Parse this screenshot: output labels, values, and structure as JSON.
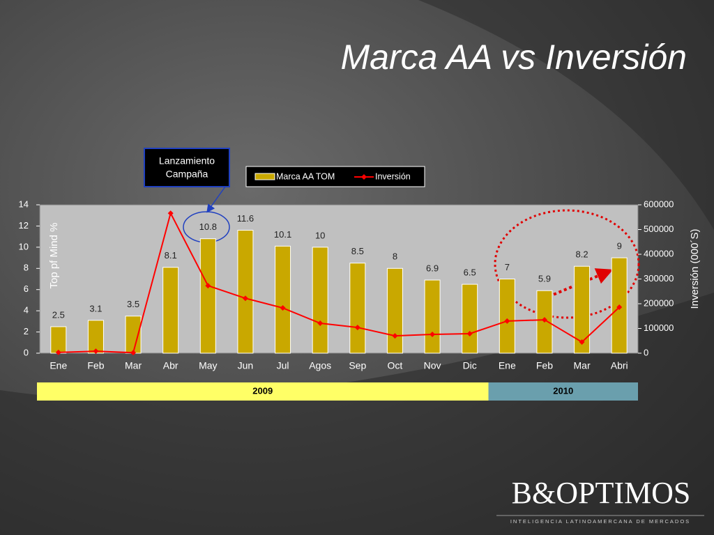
{
  "chart_data": {
    "type": "bar",
    "title": "Marca AA vs Inversión",
    "category_groups": [
      {
        "label": "2009",
        "categories": [
          "Ene",
          "Feb",
          "Mar",
          "Abr",
          "May",
          "Jun",
          "Jul",
          "Agos",
          "Sep",
          "Oct",
          "Nov",
          "Dic"
        ]
      },
      {
        "label": "2010",
        "categories": [
          "Ene",
          "Feb",
          "Mar",
          "Abri"
        ]
      }
    ],
    "series": [
      {
        "name": "Marca AA TOM",
        "type": "bar",
        "color": "#c9a800",
        "axis": "y",
        "values": [
          2.5,
          3.1,
          3.5,
          8.1,
          10.8,
          11.6,
          10.1,
          10,
          8.5,
          8,
          6.9,
          6.5,
          7,
          5.9,
          8.2,
          9
        ]
      },
      {
        "name": "Inversión",
        "type": "line",
        "color": "#ff0000",
        "axis": "y2",
        "values": [
          3000,
          8000,
          2000,
          566000,
          273000,
          222000,
          183000,
          121000,
          104000,
          70000,
          76000,
          79000,
          130000,
          135000,
          45000,
          186000
        ]
      }
    ],
    "ylabel": "Top pf Mind %",
    "y2label": "Inversión (000´S)",
    "ylim": [
      0,
      14
    ],
    "yticks": [
      0,
      2,
      4,
      6,
      8,
      10,
      12,
      14
    ],
    "y2lim": [
      0,
      600000
    ],
    "y2ticks": [
      0,
      100000,
      200000,
      300000,
      400000,
      500000,
      600000
    ],
    "annotation": [
      "Lanzamiento",
      "Campaña"
    ]
  },
  "logo": {
    "name": "B&OPTIMOS",
    "tagline": "INTELIGENCIA LATINOAMERCANA DE MERCADOS"
  }
}
